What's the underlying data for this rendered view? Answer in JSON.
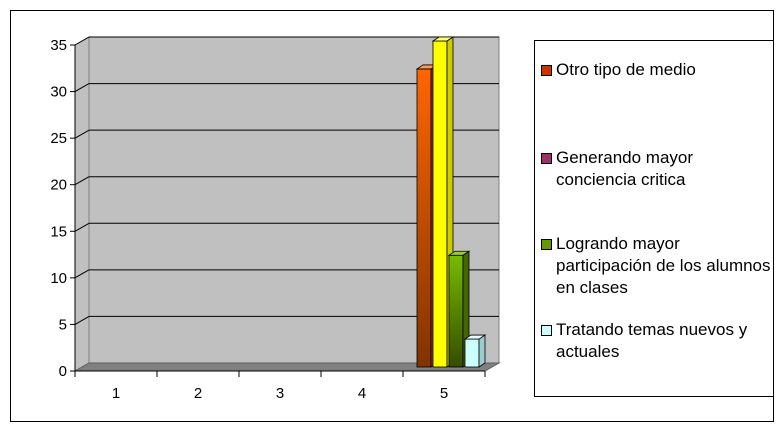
{
  "chart_data": {
    "type": "bar",
    "categories": [
      "1",
      "2",
      "3",
      "4",
      "5"
    ],
    "series": [
      {
        "name": "Otro tipo de medio",
        "color": "#ff6600",
        "values": [
          0,
          0,
          0,
          0,
          32
        ]
      },
      {
        "name": "Generando mayor conciencia critica",
        "color": "#993366",
        "values": [
          0,
          0,
          0,
          0,
          35
        ]
      },
      {
        "name": "Logrando mayor participación de los alumnos en clases",
        "color": "#66aa00",
        "values": [
          0,
          0,
          0,
          0,
          12
        ]
      },
      {
        "name": "Tratando temas nuevos y actuales",
        "color": "#ccffff",
        "values": [
          0,
          0,
          0,
          0,
          3
        ]
      }
    ],
    "bar_colors_note_series2": "#ffff00",
    "ylim": [
      0,
      35
    ],
    "yticks": [
      "0",
      "5",
      "10",
      "15",
      "20",
      "25",
      "30",
      "35"
    ],
    "grid": true,
    "legend": "right",
    "title": "",
    "xlabel": "",
    "ylabel": ""
  },
  "legend": {
    "items": [
      {
        "label": "Otro tipo de medio",
        "color": "#cc3300"
      },
      {
        "label": "Generando mayor conciencia critica",
        "color": "#993366"
      },
      {
        "label": "Logrando mayor participación de los alumnos en clases",
        "color": "#669900"
      },
      {
        "label": "Tratando temas nuevos y actuales",
        "color": "#ccffff"
      }
    ]
  }
}
